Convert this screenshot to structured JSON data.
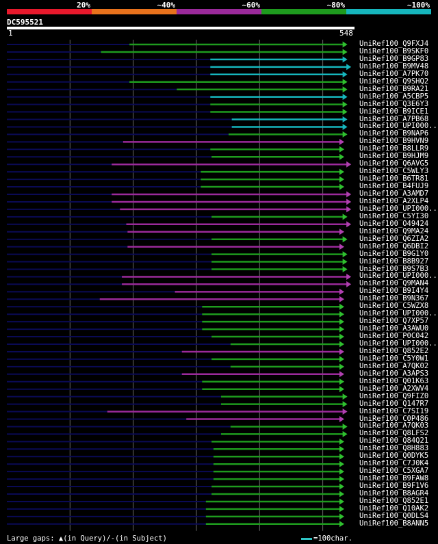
{
  "legend": {
    "items": [
      {
        "label": "20%",
        "color": "#e8192c"
      },
      {
        "label": "~40%",
        "color": "#e8721c"
      },
      {
        "label": "~60%",
        "color": "#9b2a9b"
      },
      {
        "label": "~80%",
        "color": "#1e9b1e"
      },
      {
        "label": "~100%",
        "color": "#16b6bd"
      }
    ]
  },
  "query": {
    "name": "DC595521",
    "start_label": "1",
    "end_label": "548",
    "length": 548
  },
  "colors": {
    "green": "#1e9b1e",
    "cyan": "#16b6bd",
    "purple": "#9b2a9b",
    "navy": "#0a0a55",
    "grid": "#6a6a6a",
    "green_arrow": "#2fbf2f",
    "cyan_arrow": "#16b6bd",
    "purple_arrow": "#b040b0"
  },
  "hits": [
    {
      "name": "UniRef100_Q9FXJ4",
      "color": "green",
      "start": 195,
      "end": 540
    },
    {
      "name": "UniRef100_B9SKF0",
      "color": "green",
      "start": 150,
      "end": 540
    },
    {
      "name": "UniRef100_B9GP83",
      "color": "cyan",
      "start": 323,
      "end": 540
    },
    {
      "name": "UniRef100_B9MV48",
      "color": "cyan",
      "start": 323,
      "end": 546
    },
    {
      "name": "UniRef100_A7PK70",
      "color": "cyan",
      "start": 323,
      "end": 540
    },
    {
      "name": "UniRef100_Q9SHQ2",
      "color": "green",
      "start": 195,
      "end": 540
    },
    {
      "name": "UniRef100_B9RA21",
      "color": "green",
      "start": 270,
      "end": 540
    },
    {
      "name": "UniRef100_A5CBP5",
      "color": "cyan",
      "start": 323,
      "end": 540
    },
    {
      "name": "UniRef100_Q3E6Y3",
      "color": "green",
      "start": 323,
      "end": 540
    },
    {
      "name": "UniRef100_B9ICE1",
      "color": "green",
      "start": 323,
      "end": 540
    },
    {
      "name": "UniRef100_A7PB68",
      "color": "cyan",
      "start": 357,
      "end": 540
    },
    {
      "name": "UniRef100_UPI000..",
      "color": "cyan",
      "start": 357,
      "end": 540
    },
    {
      "name": "UniRef100_B9NAP6",
      "color": "green",
      "start": 352,
      "end": 540
    },
    {
      "name": "UniRef100_B9HVN9",
      "color": "purple",
      "start": 185,
      "end": 535
    },
    {
      "name": "UniRef100_B8LLR9",
      "color": "green",
      "start": 323,
      "end": 535
    },
    {
      "name": "UniRef100_B9HJM9",
      "color": "green",
      "start": 325,
      "end": 535
    },
    {
      "name": "UniRef100_Q6AVG5",
      "color": "purple",
      "start": 167,
      "end": 546
    },
    {
      "name": "UniRef100_C5WLY3",
      "color": "green",
      "start": 308,
      "end": 535
    },
    {
      "name": "UniRef100_B6TR81",
      "color": "green",
      "start": 308,
      "end": 535
    },
    {
      "name": "UniRef100_B4FUJ9",
      "color": "green",
      "start": 308,
      "end": 535
    },
    {
      "name": "UniRef100_A3AMD7",
      "color": "purple",
      "start": 167,
      "end": 546
    },
    {
      "name": "UniRef100_A2XLP4",
      "color": "purple",
      "start": 167,
      "end": 546
    },
    {
      "name": "UniRef100_UPI000..",
      "color": "purple",
      "start": 180,
      "end": 546
    },
    {
      "name": "UniRef100_C5YI30",
      "color": "green",
      "start": 325,
      "end": 540
    },
    {
      "name": "UniRef100_O49424",
      "color": "purple",
      "start": 190,
      "end": 546
    },
    {
      "name": "UniRef100_Q9MA24",
      "color": "purple",
      "start": 192,
      "end": 535
    },
    {
      "name": "UniRef100_Q6ZIA2",
      "color": "green",
      "start": 325,
      "end": 540
    },
    {
      "name": "UniRef100_Q6DBI2",
      "color": "purple",
      "start": 192,
      "end": 535
    },
    {
      "name": "UniRef100_B9G1Y0",
      "color": "green",
      "start": 325,
      "end": 540
    },
    {
      "name": "UniRef100_B8B927",
      "color": "green",
      "start": 325,
      "end": 540
    },
    {
      "name": "UniRef100_B9S7B3",
      "color": "green",
      "start": 325,
      "end": 540
    },
    {
      "name": "UniRef100_UPI000..",
      "color": "purple",
      "start": 183,
      "end": 546
    },
    {
      "name": "UniRef100_Q9MAN4",
      "color": "purple",
      "start": 183,
      "end": 546
    },
    {
      "name": "UniRef100_B9I4Y4",
      "color": "purple",
      "start": 267,
      "end": 535
    },
    {
      "name": "UniRef100_B9N367",
      "color": "purple",
      "start": 148,
      "end": 535
    },
    {
      "name": "UniRef100_C5WZX8",
      "color": "green",
      "start": 310,
      "end": 535
    },
    {
      "name": "UniRef100_UPI000..",
      "color": "green",
      "start": 310,
      "end": 535
    },
    {
      "name": "UniRef100_Q7XP57",
      "color": "green",
      "start": 310,
      "end": 535
    },
    {
      "name": "UniRef100_A3AWU0",
      "color": "green",
      "start": 310,
      "end": 535
    },
    {
      "name": "UniRef100_P0C042",
      "color": "green",
      "start": 325,
      "end": 535
    },
    {
      "name": "UniRef100_UPI000..",
      "color": "green",
      "start": 355,
      "end": 535
    },
    {
      "name": "UniRef100_Q852E2",
      "color": "purple",
      "start": 278,
      "end": 535
    },
    {
      "name": "UniRef100_C5Y0W1",
      "color": "green",
      "start": 325,
      "end": 535
    },
    {
      "name": "UniRef100_A7QK02",
      "color": "green",
      "start": 355,
      "end": 535
    },
    {
      "name": "UniRef100_A3APS3",
      "color": "purple",
      "start": 278,
      "end": 535
    },
    {
      "name": "UniRef100_Q01K63",
      "color": "green",
      "start": 310,
      "end": 535
    },
    {
      "name": "UniRef100_A2XWV4",
      "color": "green",
      "start": 310,
      "end": 535
    },
    {
      "name": "UniRef100_Q9FIZ0",
      "color": "green",
      "start": 340,
      "end": 540
    },
    {
      "name": "UniRef100_Q147R7",
      "color": "green",
      "start": 340,
      "end": 540
    },
    {
      "name": "UniRef100_C7SI19",
      "color": "purple",
      "start": 160,
      "end": 540
    },
    {
      "name": "UniRef100_C0P486",
      "color": "purple",
      "start": 285,
      "end": 535
    },
    {
      "name": "UniRef100_A7QK03",
      "color": "green",
      "start": 355,
      "end": 540
    },
    {
      "name": "UniRef100_Q8LFS2",
      "color": "green",
      "start": 340,
      "end": 540
    },
    {
      "name": "UniRef100_Q84Q21",
      "color": "green",
      "start": 325,
      "end": 535
    },
    {
      "name": "UniRef100_Q8H883",
      "color": "green",
      "start": 328,
      "end": 535
    },
    {
      "name": "UniRef100_Q0DYK5",
      "color": "green",
      "start": 328,
      "end": 535
    },
    {
      "name": "UniRef100_C7J0K4",
      "color": "green",
      "start": 328,
      "end": 535
    },
    {
      "name": "UniRef100_C5XGA7",
      "color": "green",
      "start": 328,
      "end": 535
    },
    {
      "name": "UniRef100_B9FAW8",
      "color": "green",
      "start": 328,
      "end": 535
    },
    {
      "name": "UniRef100_B9F1V6",
      "color": "green",
      "start": 325,
      "end": 535
    },
    {
      "name": "UniRef100_B8AGR4",
      "color": "green",
      "start": 325,
      "end": 535
    },
    {
      "name": "UniRef100_Q852E1",
      "color": "green",
      "start": 316,
      "end": 535
    },
    {
      "name": "UniRef100_Q10AK2",
      "color": "green",
      "start": 316,
      "end": 535
    },
    {
      "name": "UniRef100_Q0DLS4",
      "color": "green",
      "start": 316,
      "end": 535
    },
    {
      "name": "UniRef100_B8ANN5",
      "color": "green",
      "start": 316,
      "end": 535
    }
  ],
  "footer": {
    "gaps_label": "Large gaps:",
    "query_gap": "▲(in Query)/",
    "subject_gap": "-(in Subject)",
    "scale_label": "=100char."
  }
}
